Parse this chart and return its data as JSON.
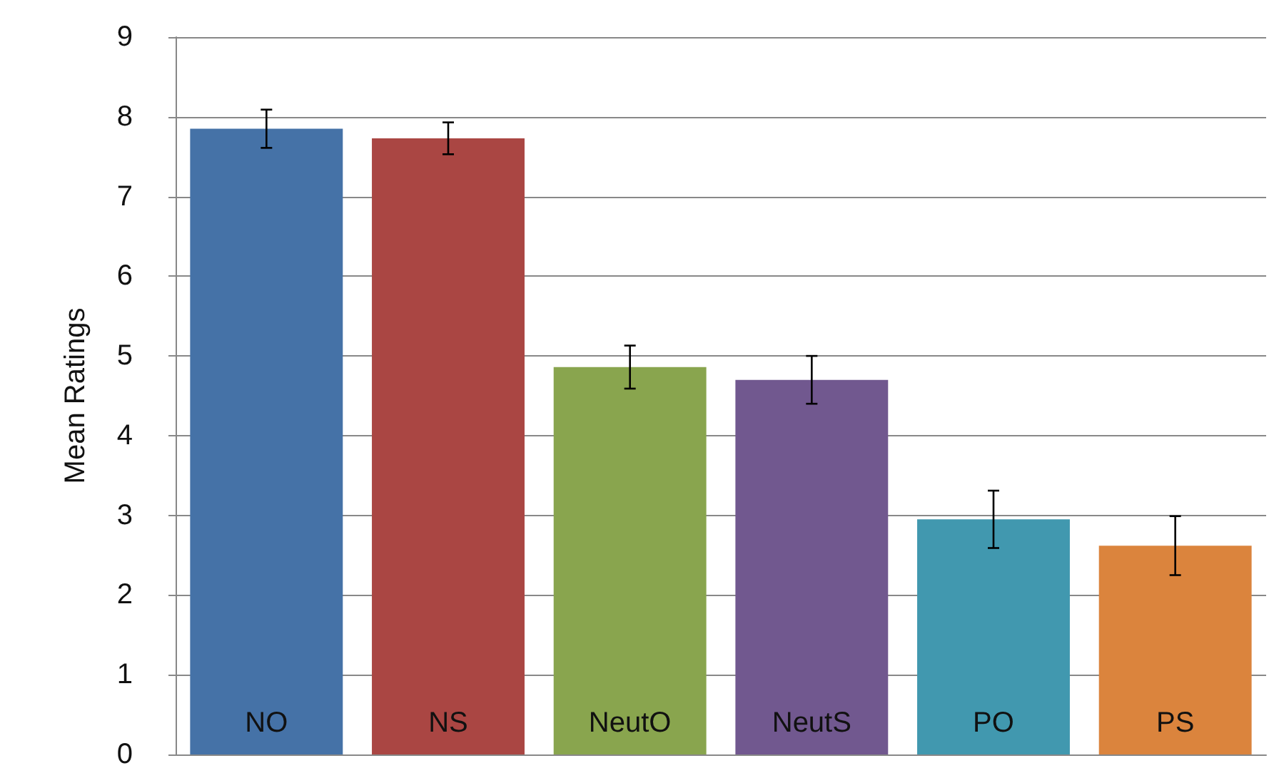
{
  "chart_data": {
    "type": "bar",
    "ylabel": "Mean Ratings",
    "categories": [
      "NO",
      "NS",
      "NeutO",
      "NeutS",
      "PO",
      "PS"
    ],
    "values": [
      7.85,
      7.73,
      4.86,
      4.7,
      2.95,
      2.62
    ],
    "errors": [
      0.24,
      0.2,
      0.27,
      0.3,
      0.36,
      0.37
    ],
    "colors": [
      "#4572a7",
      "#aa4643",
      "#89a54e",
      "#71588f",
      "#4198af",
      "#db843d"
    ],
    "ylim": [
      0,
      9
    ],
    "yticks": [
      0,
      1,
      2,
      3,
      4,
      5,
      6,
      7,
      8,
      9
    ],
    "grid": "y"
  }
}
